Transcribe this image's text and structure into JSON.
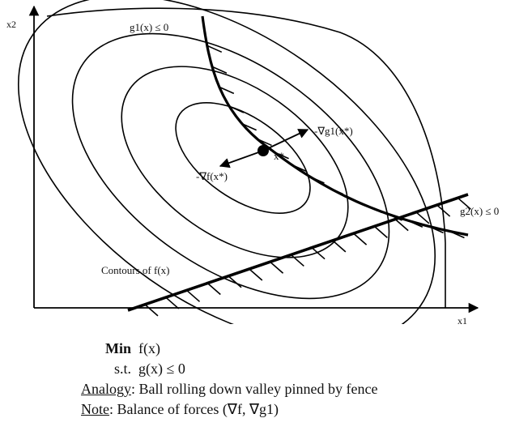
{
  "axes": {
    "x_label": "x1",
    "y_label": "x2"
  },
  "labels": {
    "g1_constraint": "g1(x) ≤ 0",
    "g2_constraint": "g2(x) ≤ 0",
    "grad_g1": "-∇g1(x*)",
    "grad_f": "-∇f(x*)",
    "optimum": "x*",
    "contours": "Contours of f(x)"
  },
  "caption": {
    "min_keyword": "Min",
    "min_expr": "f(x)",
    "st_keyword": "s.t.",
    "st_expr": "g(x) ≤ 0",
    "analogy_label": "Analogy",
    "analogy_text": ":  Ball rolling down valley pinned by fence",
    "note_label": "Note",
    "note_text": ":  Balance of forces (∇f, ∇g1)"
  }
}
